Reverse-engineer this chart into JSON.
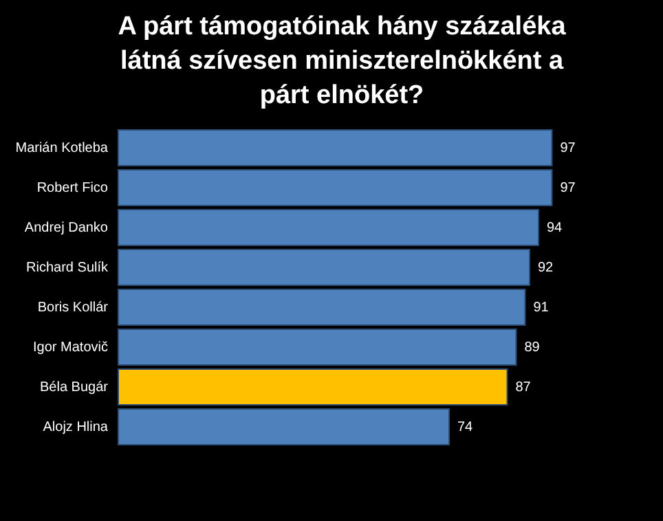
{
  "chart_data": {
    "type": "bar",
    "orientation": "horizontal",
    "title": "A párt támogatóinak hány százaléka látná szívesen miniszterelnökként a párt elnökét?",
    "categories": [
      "Marián Kotleba",
      "Robert Fico",
      "Andrej Danko",
      "Richard Sulík",
      "Boris Kollár",
      "Igor Matovič",
      "Béla Bugár",
      "Alojz Hlina"
    ],
    "values": [
      97,
      97,
      94,
      92,
      91,
      89,
      87,
      74
    ],
    "colors": [
      "#4f81bd",
      "#4f81bd",
      "#4f81bd",
      "#4f81bd",
      "#4f81bd",
      "#4f81bd",
      "#ffc000",
      "#4f81bd"
    ],
    "data_labels": true
  }
}
